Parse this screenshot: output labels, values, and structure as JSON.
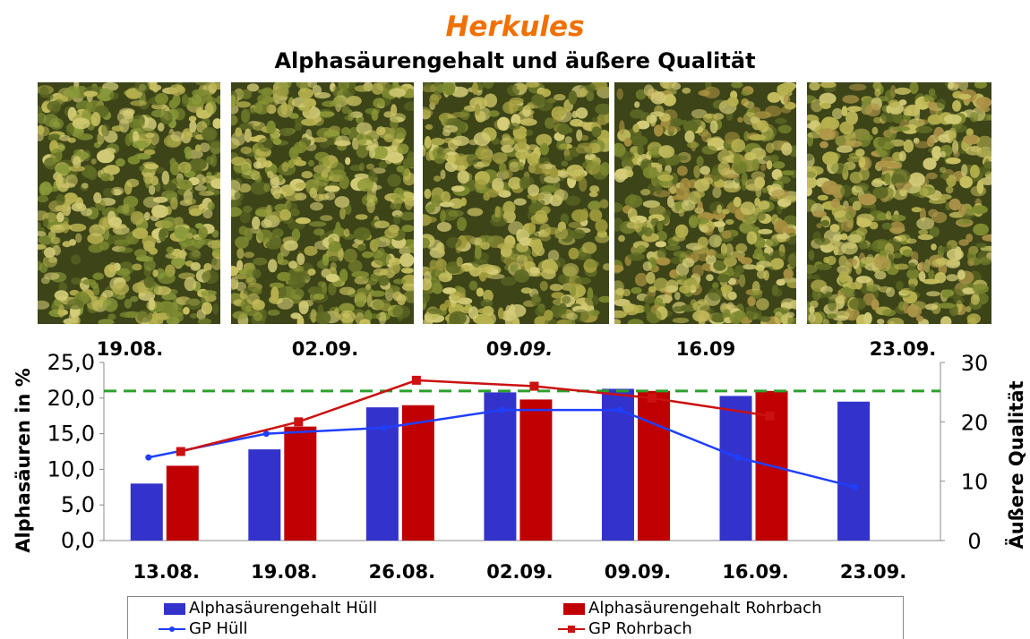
{
  "title": "Herkules",
  "subtitle": "Alphasäurengehalt und äußere Qualität",
  "photos": [
    {
      "label": "19.08.",
      "tone": "#8a9a3a"
    },
    {
      "label": "02.09.",
      "tone": "#909a38"
    },
    {
      "label_main": "09.",
      "label_italic": "09.",
      "tone": "#a09a3c"
    },
    {
      "label": "16.09",
      "tone": "#a89040"
    },
    {
      "label": "23.09.",
      "tone": "#ae9448"
    }
  ],
  "chart_data": {
    "type": "bar",
    "categories": [
      "13.08.",
      "19.08.",
      "26.08.",
      "02.09.",
      "09.09.",
      "16.09.",
      "23.09."
    ],
    "series": [
      {
        "name": "Alphasäurengehalt Hüll",
        "kind": "bar",
        "axis": "left",
        "color": "#3333cc",
        "values": [
          8.0,
          12.8,
          18.7,
          20.8,
          21.3,
          20.3,
          19.5
        ]
      },
      {
        "name": "Alphasäurengehalt Rohrbach",
        "kind": "bar",
        "axis": "left",
        "color": "#c00000",
        "values": [
          10.5,
          16.0,
          19.0,
          19.8,
          21.0,
          21.0,
          null
        ]
      },
      {
        "name": "GP Hüll",
        "kind": "line",
        "axis": "right",
        "color": "#1f3fff",
        "values": [
          14,
          18,
          19,
          22,
          22,
          14,
          9
        ]
      },
      {
        "name": "GP Rohrbach",
        "kind": "line",
        "axis": "right",
        "color": "#cc1111",
        "values": [
          15,
          20,
          27,
          26,
          24,
          21,
          null
        ]
      }
    ],
    "reference_line": {
      "axis": "left",
      "value": 21.0,
      "color": "#2ca02c",
      "style": "dashed"
    },
    "ylabel": "Alphasäuren in %",
    "y2label": "Äußere Qualität",
    "ylim": [
      0,
      25
    ],
    "y2lim": [
      0,
      30
    ],
    "yticks": [
      "0,0",
      "5,0",
      "10,0",
      "15,0",
      "20,0",
      "25,0"
    ],
    "y2ticks": [
      "0",
      "10",
      "20",
      "30"
    ],
    "grid": false,
    "legend_position": "bottom"
  }
}
